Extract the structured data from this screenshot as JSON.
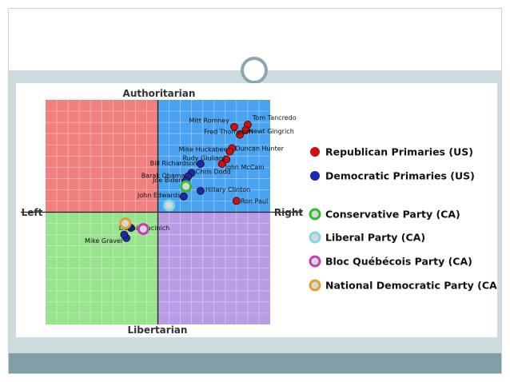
{
  "chart_data": {
    "type": "scatter",
    "axis_labels": {
      "top": "Authoritarian",
      "bottom": "Libertarian",
      "left": "Left",
      "right": "Right"
    },
    "xlim": [
      -10,
      10
    ],
    "ylim": [
      -10,
      10
    ],
    "quadrant_colors": {
      "top_left": "#f08080",
      "top_right": "#4aa3f0",
      "bottom_left": "#99e28e",
      "bottom_right": "#b89de6"
    },
    "grid": true,
    "legend_placement": "right",
    "legend": [
      {
        "label": "Republican Primaries (US)",
        "color": "#cc1111",
        "style": "filled"
      },
      {
        "label": "Democratic Primaries (US)",
        "color": "#1a2ab0",
        "style": "filled"
      },
      {
        "label": "Conservative Party (CA)",
        "color": "#33bb33",
        "style": "ring"
      },
      {
        "label": "Liberal Party (CA)",
        "color": "#7fd8e8",
        "style": "ring"
      },
      {
        "label": "Bloc Québécois Party (CA)",
        "color": "#c73ea8",
        "style": "ring"
      },
      {
        "label": "National Democratic Party (CA)",
        "color": "#e0a030",
        "style": "ring"
      }
    ],
    "series": [
      {
        "name": "Republican Primaries (US)",
        "points": [
          {
            "label": "Mitt Romney",
            "x": 6.8,
            "y": 7.6
          },
          {
            "label": "Tom Tancredo",
            "x": 8.0,
            "y": 7.8
          },
          {
            "label": "Newt Gingrich",
            "x": 7.8,
            "y": 7.3
          },
          {
            "label": "Fred Thompson",
            "x": 7.3,
            "y": 6.9
          },
          {
            "label": "Duncan Hunter",
            "x": 6.6,
            "y": 5.7
          },
          {
            "label": "Mike Huckabee",
            "x": 6.4,
            "y": 5.4
          },
          {
            "label": "Rudy Giuliani",
            "x": 6.1,
            "y": 4.7
          },
          {
            "label": "John McCain",
            "x": 5.7,
            "y": 4.3
          },
          {
            "label": "Ron Paul",
            "x": 7.0,
            "y": 1.0
          }
        ]
      },
      {
        "name": "Democratic Primaries (US)",
        "points": [
          {
            "label": "Bill Richardson",
            "x": 3.8,
            "y": 4.3
          },
          {
            "label": "Chris Dodd",
            "x": 3.0,
            "y": 3.5
          },
          {
            "label": "Barak Obama",
            "x": 2.7,
            "y": 3.2
          },
          {
            "label": "Joe Biden",
            "x": 2.5,
            "y": 2.8
          },
          {
            "label": "Hillary Clinton",
            "x": 3.8,
            "y": 1.9
          },
          {
            "label": "John Edwards",
            "x": 2.3,
            "y": 1.4
          },
          {
            "label": "Dennis Kucinich",
            "x": -2.4,
            "y": -1.4
          },
          {
            "label": "Mike Gravel",
            "x": -2.8,
            "y": -2.3
          },
          {
            "label": "",
            "x": -3.0,
            "y": -2.0
          }
        ]
      },
      {
        "name": "Conservative Party (CA)",
        "points": [
          {
            "label": "",
            "x": 2.5,
            "y": 2.3
          }
        ]
      },
      {
        "name": "Liberal Party (CA)",
        "points": [
          {
            "label": "",
            "x": 1.0,
            "y": 0.6
          }
        ]
      },
      {
        "name": "Bloc Québécois Party (CA)",
        "points": [
          {
            "label": "",
            "x": -1.3,
            "y": -1.5
          }
        ]
      },
      {
        "name": "National Democratic Party (CA)",
        "points": [
          {
            "label": "",
            "x": -2.9,
            "y": -1.0
          }
        ]
      }
    ]
  }
}
